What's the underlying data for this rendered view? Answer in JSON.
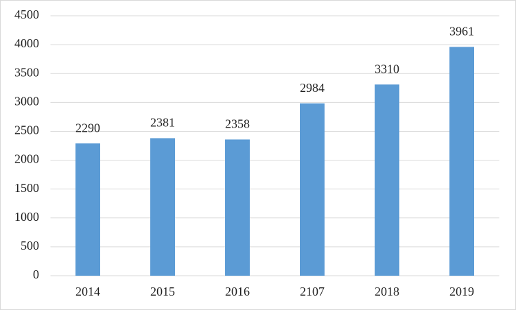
{
  "chart_data": {
    "type": "bar",
    "categories": [
      "2014",
      "2015",
      "2016",
      "2107",
      "2018",
      "2019"
    ],
    "values": [
      2290,
      2381,
      2358,
      2984,
      3310,
      3961
    ],
    "color": "#5b9bd5",
    "ylim": [
      0,
      4500
    ],
    "yticks": [
      0,
      500,
      1000,
      1500,
      2000,
      2500,
      3000,
      3500,
      4000,
      4500
    ],
    "grid": true,
    "data_labels": true
  }
}
